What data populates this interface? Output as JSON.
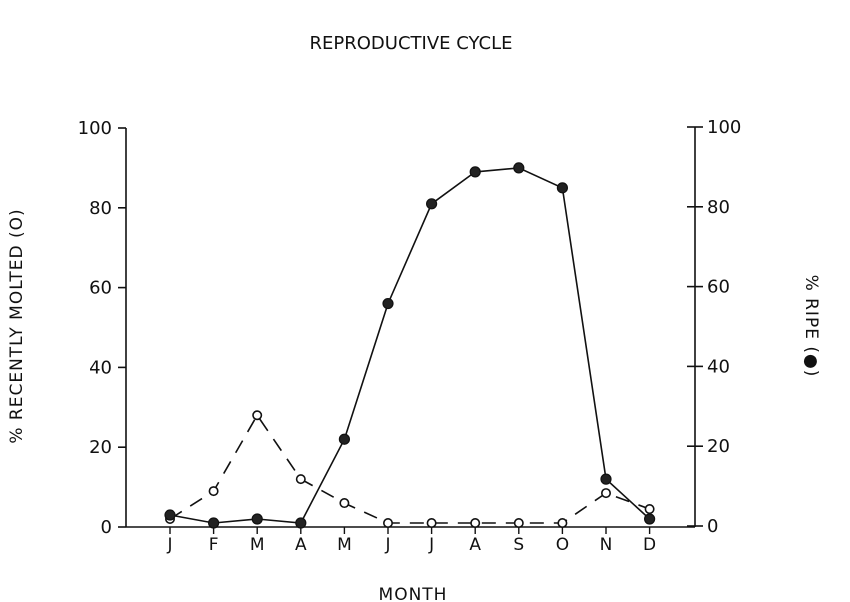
{
  "chart_data": {
    "type": "line",
    "title": "REPRODUCTIVE CYCLE",
    "xlabel": "MONTH",
    "ylabel_left": "% RECENTLY MOLTED (O)",
    "ylabel_right": "% RIPE (●)",
    "categories": [
      "J",
      "F",
      "M",
      "A",
      "M",
      "J",
      "J",
      "A",
      "S",
      "O",
      "N",
      "D"
    ],
    "ylim": [
      0,
      100
    ],
    "y_ticks": [
      0,
      20,
      40,
      60,
      80,
      100
    ],
    "series": [
      {
        "name": "% Recently Molted",
        "axis": "left",
        "marker": "open-circle",
        "line_style": "dashed",
        "values": [
          2,
          9,
          28,
          12,
          6,
          1,
          1,
          1,
          1,
          1,
          8.5,
          4.5
        ]
      },
      {
        "name": "% Ripe",
        "axis": "right",
        "marker": "filled-circle",
        "line_style": "solid",
        "values": [
          3,
          1,
          2,
          1,
          22,
          56,
          81,
          89,
          90,
          85,
          12,
          2
        ]
      }
    ]
  }
}
